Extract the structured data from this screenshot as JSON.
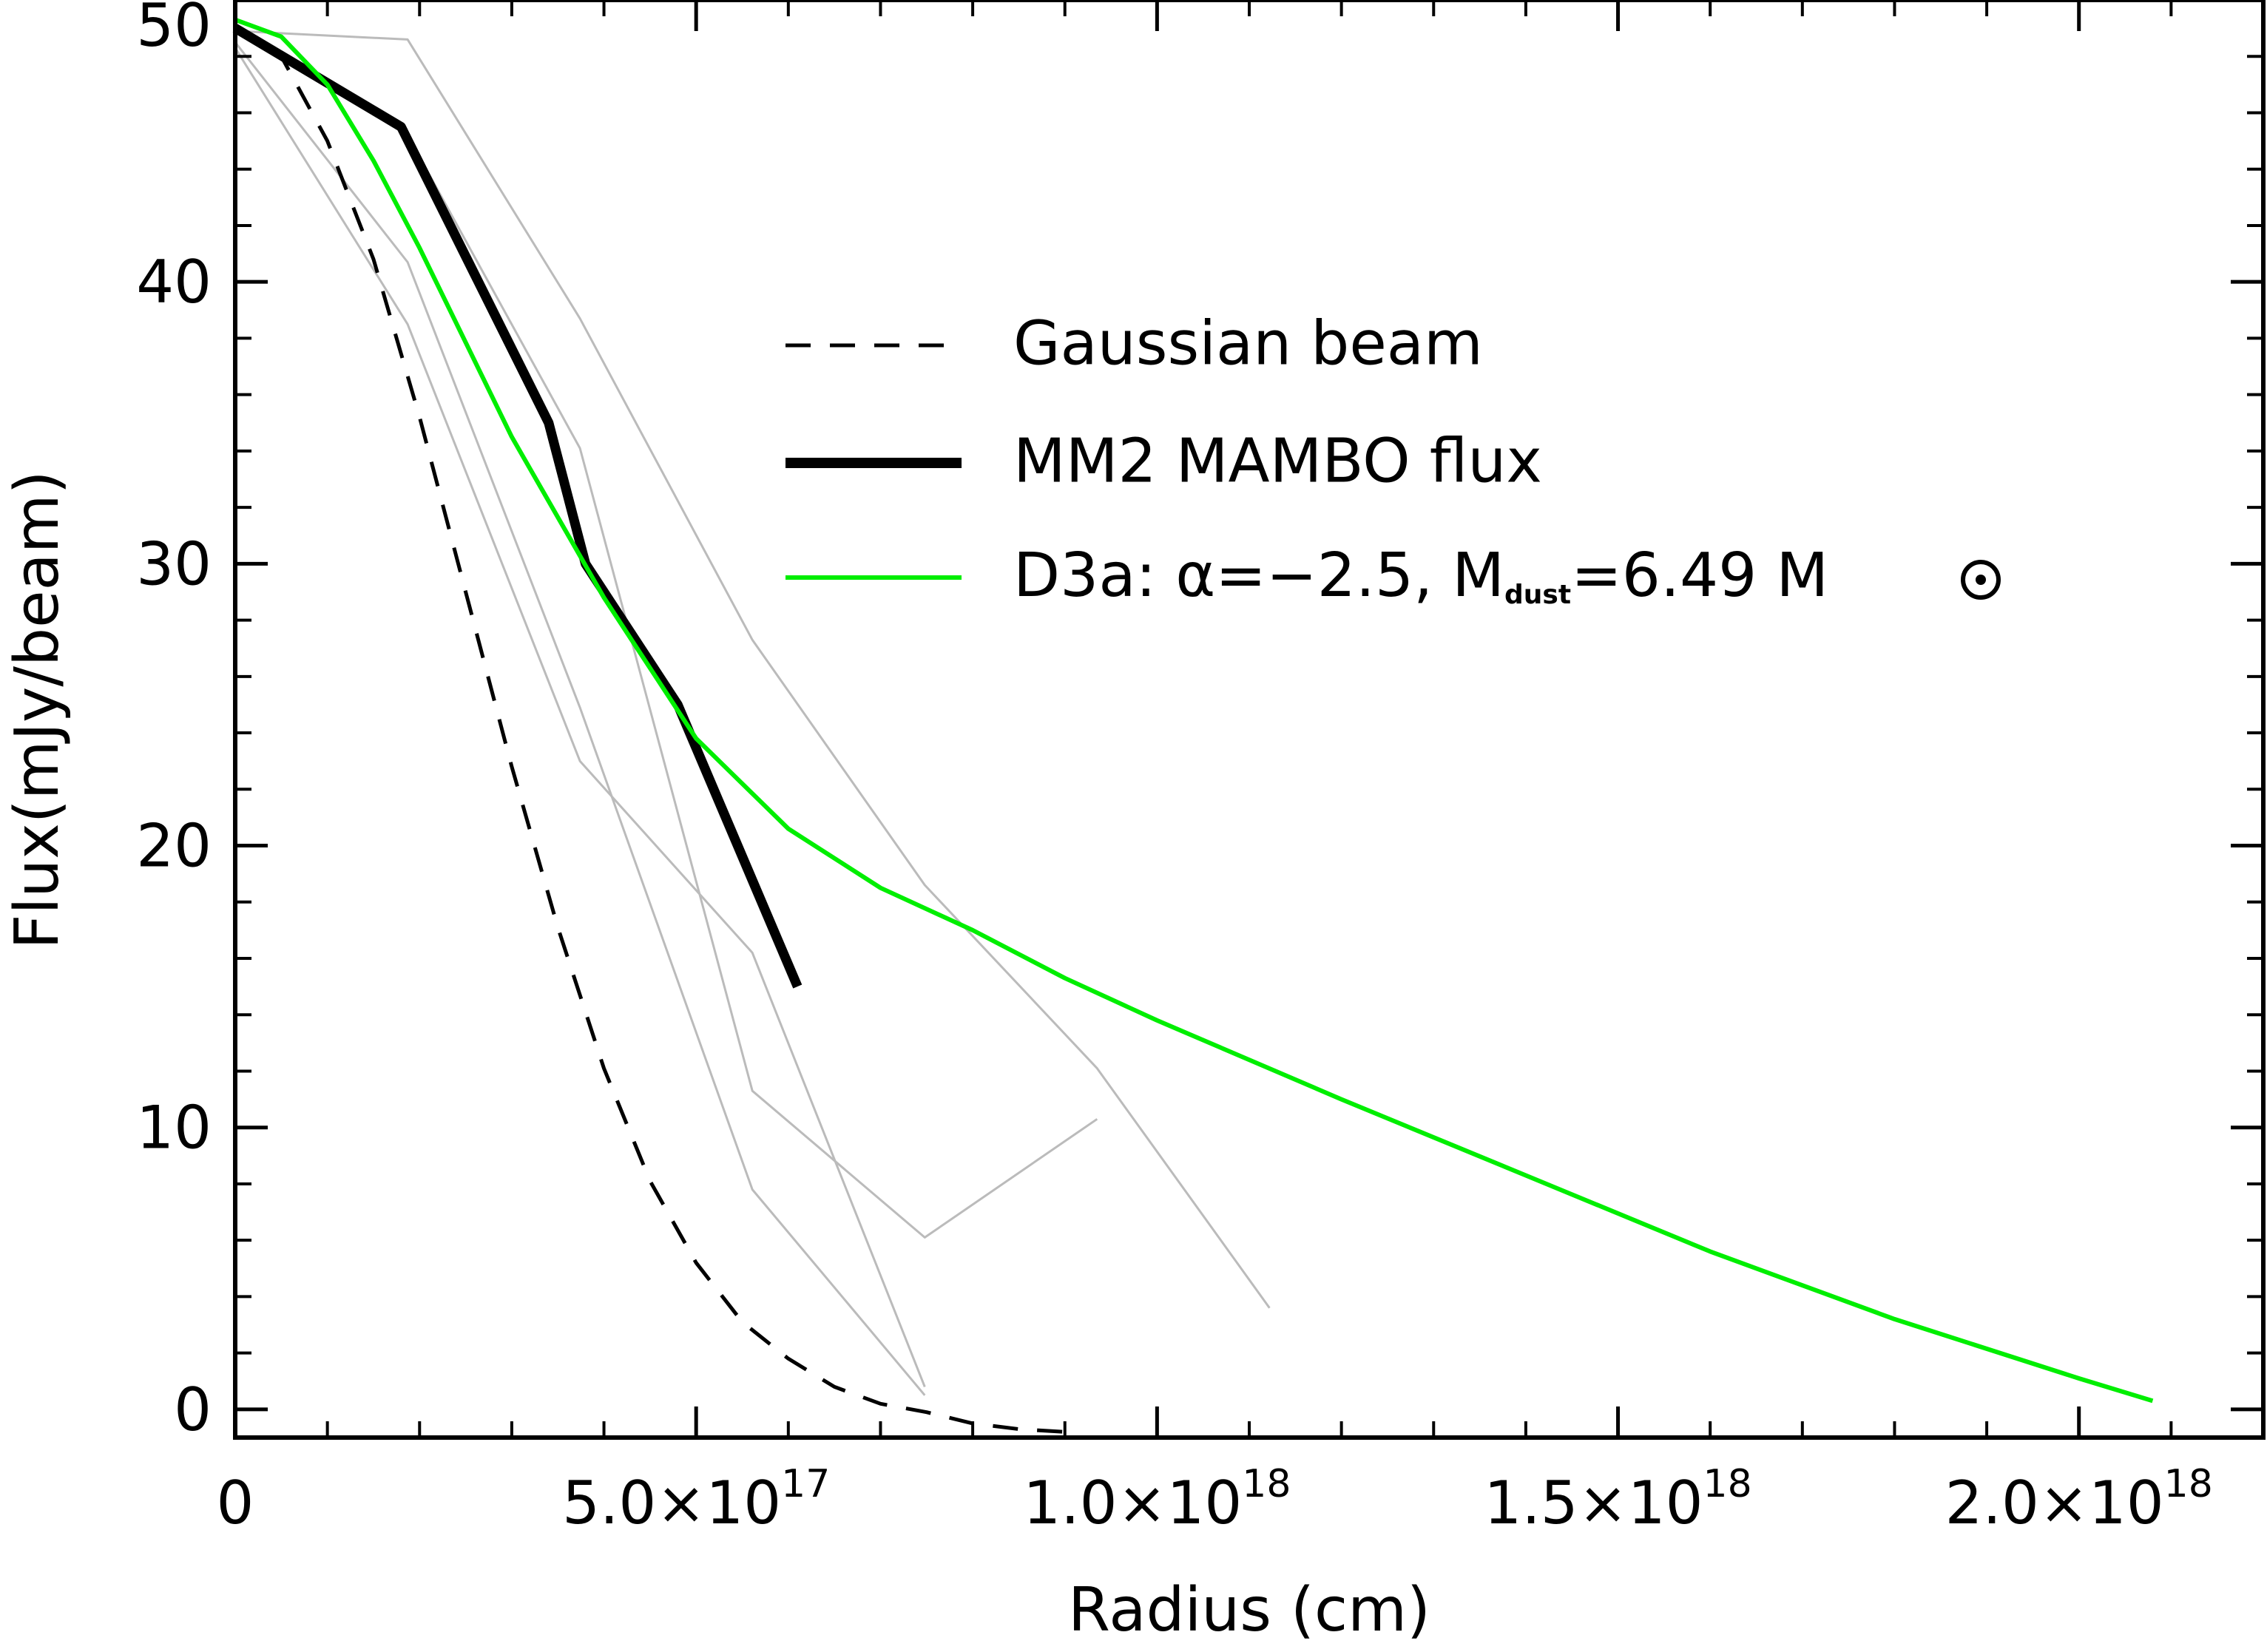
{
  "chart_data": {
    "type": "line",
    "xlabel": "Radius (cm)",
    "ylabel": "Flux(mJy/beam)",
    "xlim": [
      0,
      2.2e+18
    ],
    "ylim": [
      -1,
      50
    ],
    "grid": false,
    "legend_position": "top-right",
    "x_ticks": [
      {
        "value": 0,
        "mantissa": "0",
        "times": "",
        "base": "",
        "exponent": ""
      },
      {
        "value": 5e+17,
        "mantissa": "5.0",
        "times": "×",
        "base": "10",
        "exponent": "17"
      },
      {
        "value": 1e+18,
        "mantissa": "1.0",
        "times": "×",
        "base": "10",
        "exponent": "18"
      },
      {
        "value": 1.5e+18,
        "mantissa": "1.5",
        "times": "×",
        "base": "10",
        "exponent": "18"
      },
      {
        "value": 2e+18,
        "mantissa": "2.0",
        "times": "×",
        "base": "10",
        "exponent": "18"
      }
    ],
    "y_ticks": [
      {
        "value": 0,
        "label": "0"
      },
      {
        "value": 10,
        "label": "10"
      },
      {
        "value": 20,
        "label": "20"
      },
      {
        "value": 30,
        "label": "30"
      },
      {
        "value": 40,
        "label": "40"
      },
      {
        "value": 50,
        "label": "50"
      }
    ],
    "series": [
      {
        "name": "Gaussian beam",
        "color": "#000000",
        "style": "dashed",
        "x": [
          0,
          5e+16,
          1e+17,
          1.5e+17,
          2e+17,
          2.5e+17,
          3e+17,
          3.5e+17,
          4e+17,
          4.5e+17,
          5e+17,
          5.5e+17,
          6e+17,
          6.5e+17,
          7e+17,
          7.5e+17,
          8e+17,
          8.5e+17,
          9e+17
        ],
        "y": [
          49.0,
          48.0,
          45.0,
          40.8,
          35.2,
          29.0,
          22.8,
          17.1,
          12.1,
          8.1,
          5.2,
          3.1,
          1.8,
          0.8,
          0.2,
          -0.1,
          -0.5,
          -0.7,
          -0.8
        ]
      },
      {
        "name": "MM2 MAMBO flux",
        "color": "#000000",
        "style": "solid-thick",
        "x": [
          0,
          1.8e+17,
          3.4e+17,
          3.8e+17,
          4.8e+17,
          6.1e+17
        ],
        "y": [
          49.0,
          45.5,
          35.0,
          30.0,
          25.0,
          15.0
        ]
      },
      {
        "name": "D3a: α=−2.5, Mdust=6.49 M⊙",
        "color": "#00ee00",
        "style": "solid",
        "x": [
          0,
          5e+16,
          1e+17,
          1.5e+17,
          2e+17,
          3e+17,
          4e+17,
          5e+17,
          6e+17,
          7e+17,
          8e+17,
          9e+17,
          1e+18,
          1.2e+18,
          1.4e+18,
          1.6e+18,
          1.8e+18,
          2e+18,
          2.08e+18
        ],
        "y": [
          49.3,
          48.7,
          47.0,
          44.3,
          41.2,
          34.5,
          28.8,
          23.8,
          20.6,
          18.5,
          17.0,
          15.3,
          13.8,
          11.0,
          8.3,
          5.6,
          3.2,
          1.1,
          0.3
        ]
      },
      {
        "color": "#bbbbbb",
        "style": "thin",
        "x": [
          0,
          1.87e+17,
          3.74e+17,
          5.61e+17,
          7.48e+17,
          9.35e+17,
          1.122e+18
        ],
        "y": [
          48.9,
          48.6,
          38.7,
          27.3,
          18.6,
          12.1,
          3.6
        ]
      },
      {
        "color": "#bbbbbb",
        "style": "thin",
        "x": [
          0,
          1.87e+17,
          3.74e+17,
          5.61e+17,
          7.48e+17,
          9.35e+17
        ],
        "y": [
          48.9,
          45.2,
          34.1,
          11.3,
          6.1,
          10.3
        ]
      },
      {
        "color": "#bbbbbb",
        "style": "thin",
        "x": [
          0,
          1.87e+17,
          3.74e+17,
          5.61e+17,
          7.48e+17
        ],
        "y": [
          48.5,
          40.7,
          24.9,
          7.8,
          0.5
        ]
      },
      {
        "color": "#bbbbbb",
        "style": "thin",
        "x": [
          0,
          1.87e+17,
          3.74e+17,
          5.61e+17,
          7.48e+17
        ],
        "y": [
          48.3,
          38.5,
          23.0,
          16.2,
          0.8
        ]
      }
    ],
    "legend": {
      "entries": [
        {
          "text": "Gaussian beam",
          "style": "dashed",
          "color": "#000000"
        },
        {
          "text": "MM2 MAMBO flux",
          "style": "solid-thick",
          "color": "#000000"
        },
        {
          "prefix": "D3a: α=−2.5, M",
          "sub": "dust",
          "suffix": "=6.49 M",
          "symbol": "sun-symbol",
          "style": "solid",
          "color": "#00ee00"
        }
      ]
    }
  }
}
